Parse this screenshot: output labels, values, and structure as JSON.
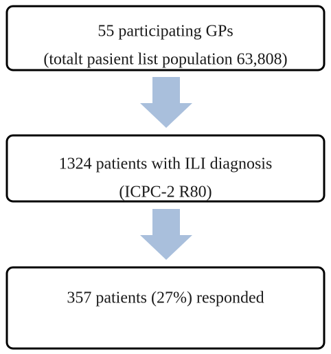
{
  "nodes": [
    {
      "lines": [
        "55 participating GPs",
        "(totalt pasient list population 63,808)"
      ]
    },
    {
      "lines": [
        "1324 patients with ILI diagnosis",
        "(ICPC-2 R80)"
      ]
    },
    {
      "lines": [
        "357 patients (27%) responded"
      ]
    }
  ]
}
